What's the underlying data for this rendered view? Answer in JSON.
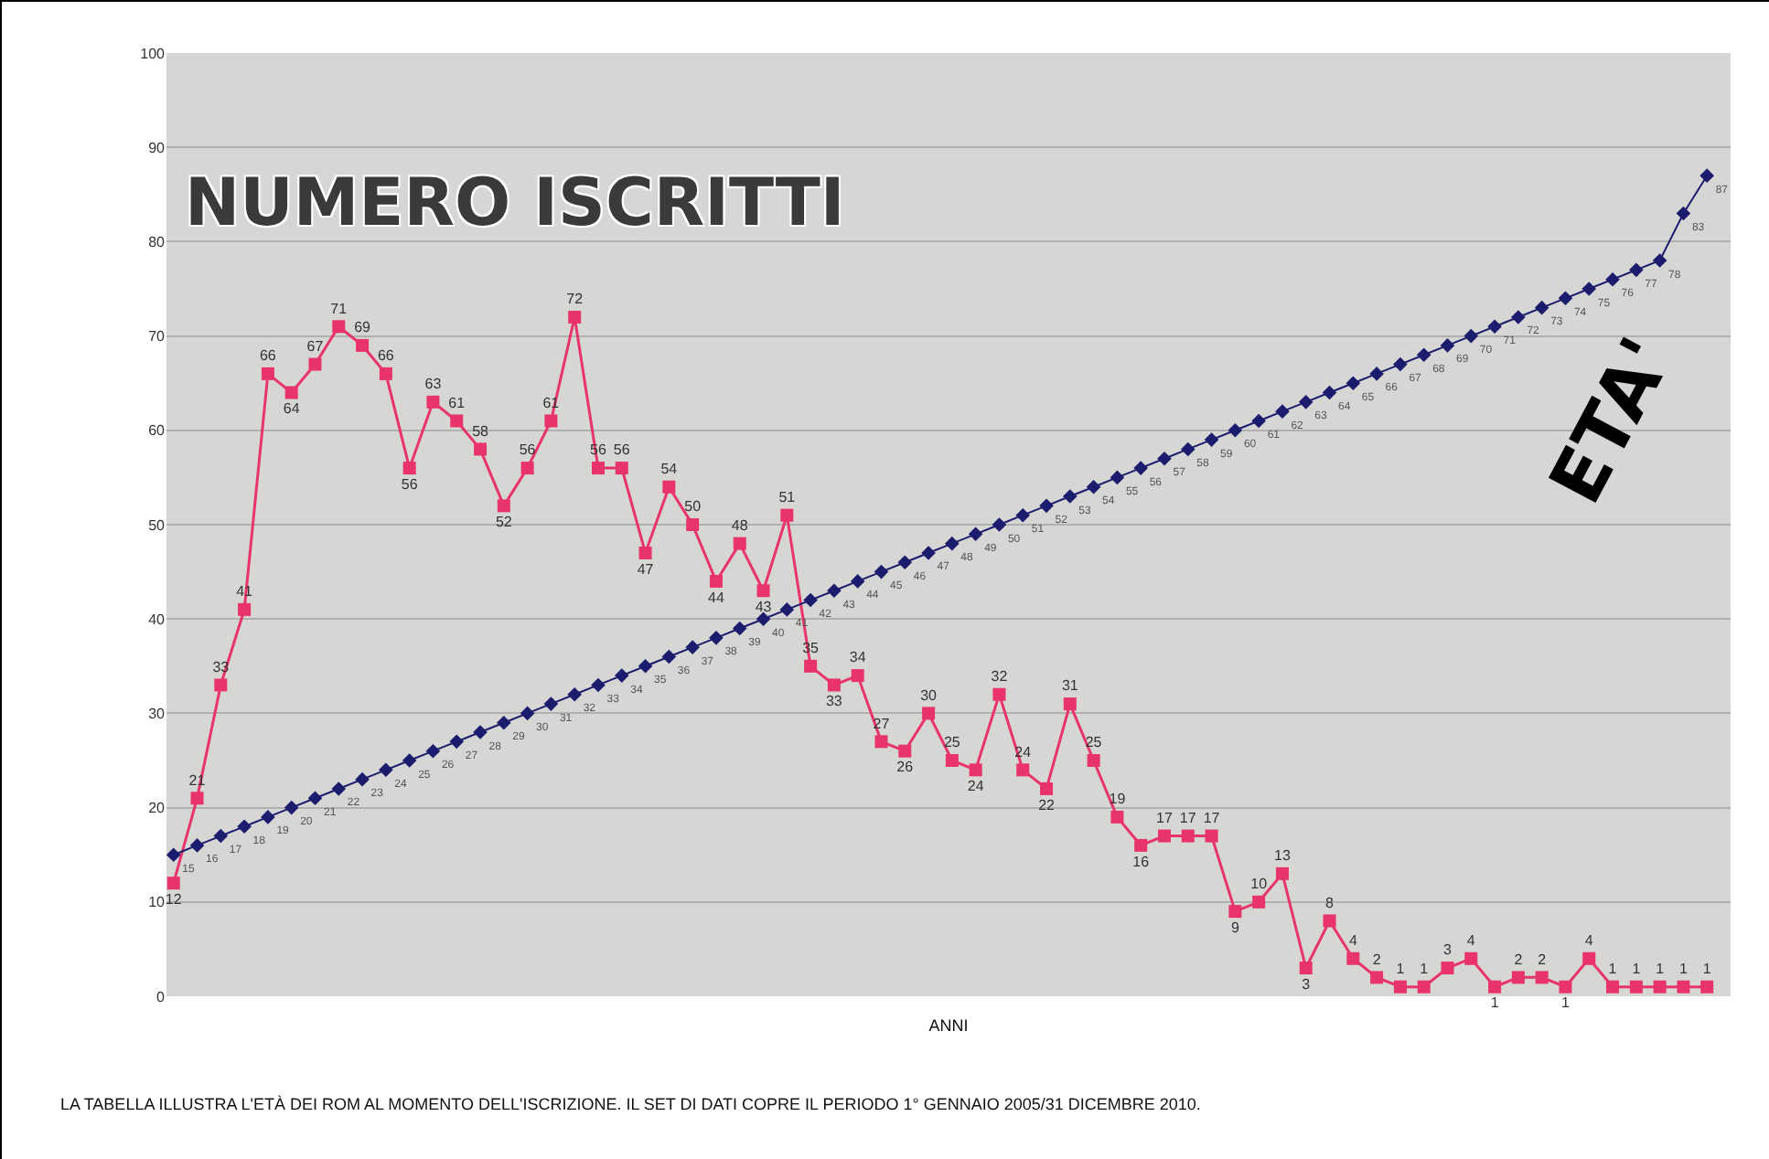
{
  "chart_data": {
    "type": "line",
    "xlabel": "ANNI",
    "categories": [
      null,
      null,
      null,
      null,
      null,
      null,
      null,
      null,
      null,
      null,
      null,
      null,
      null,
      null,
      null,
      null,
      null,
      null,
      null,
      null,
      null,
      null,
      null,
      null,
      null,
      null,
      null,
      null,
      null,
      null,
      null,
      null,
      null,
      null,
      null,
      null,
      null,
      null,
      null,
      null,
      null,
      null,
      null,
      null,
      null,
      null,
      null,
      null,
      null,
      null,
      null,
      null,
      null,
      null,
      null,
      null,
      null,
      null,
      null,
      null,
      null,
      null,
      null,
      null,
      null,
      null
    ],
    "series": [
      {
        "name": "NUMERO ISCRITTI",
        "color": "#e8336b",
        "marker": "square",
        "values": [
          12,
          21,
          33,
          41,
          66,
          64,
          67,
          71,
          69,
          66,
          56,
          63,
          61,
          58,
          52,
          56,
          61,
          72,
          56,
          56,
          47,
          54,
          50,
          44,
          48,
          43,
          51,
          35,
          33,
          34,
          27,
          26,
          30,
          25,
          24,
          32,
          24,
          22,
          31,
          25,
          19,
          16,
          17,
          17,
          17,
          9,
          10,
          13,
          3,
          8,
          4,
          2,
          1,
          1,
          3,
          4,
          1,
          2,
          2,
          1,
          4,
          1,
          1,
          1,
          1,
          1
        ]
      },
      {
        "name": "ETA'",
        "color": "#1c1c6e",
        "marker": "diamond",
        "values": [
          15,
          16,
          17,
          18,
          19,
          20,
          21,
          22,
          23,
          24,
          25,
          26,
          27,
          28,
          29,
          30,
          31,
          32,
          33,
          34,
          35,
          36,
          37,
          38,
          39,
          40,
          41,
          42,
          43,
          44,
          45,
          46,
          47,
          48,
          49,
          50,
          51,
          52,
          53,
          54,
          55,
          56,
          57,
          58,
          59,
          60,
          61,
          62,
          63,
          64,
          65,
          66,
          67,
          68,
          69,
          70,
          71,
          72,
          73,
          74,
          75,
          76,
          77,
          78,
          83,
          87
        ]
      }
    ],
    "ylim": [
      0,
      100
    ],
    "yticks": [
      0,
      10,
      20,
      30,
      40,
      50,
      60,
      70,
      80,
      90,
      100
    ],
    "grid": "y",
    "tick_labels": "y",
    "data_labels": true,
    "line_style": "solid",
    "annotations": [
      "LA TABELLA ILLUSTRA L'ETÀ DEI ROM AL MOMENTO DELL'ISCRIZIONE. IL SET DI DATI COPRE IL PERIODO 1° GENNAIO 2005/31 DICEMBRE 2010."
    ]
  }
}
